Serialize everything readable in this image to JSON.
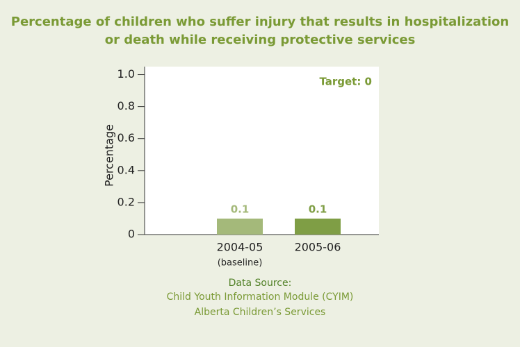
{
  "chart_data": {
    "type": "bar",
    "title": [
      "Percentage of children who suffer injury that results in hospitalization",
      "or death while receiving protective services"
    ],
    "y_label": "Percentage",
    "categories": [
      "2004-05",
      "2005-06"
    ],
    "category_notes": [
      "(baseline)",
      null
    ],
    "values": [
      0.1,
      0.1
    ],
    "colors": [
      "#a4b97a",
      "#7f9e45"
    ],
    "ylim": [
      0,
      1.05
    ],
    "yticks": [
      0,
      0.2,
      0.4,
      0.6,
      0.8,
      {
        "value": 1,
        "label": "1.0"
      }
    ],
    "annotation": "Target: 0",
    "source": [
      "Data Source:",
      "Child Youth Information Module (CYIM)",
      "Alberta Children’s Services"
    ]
  }
}
